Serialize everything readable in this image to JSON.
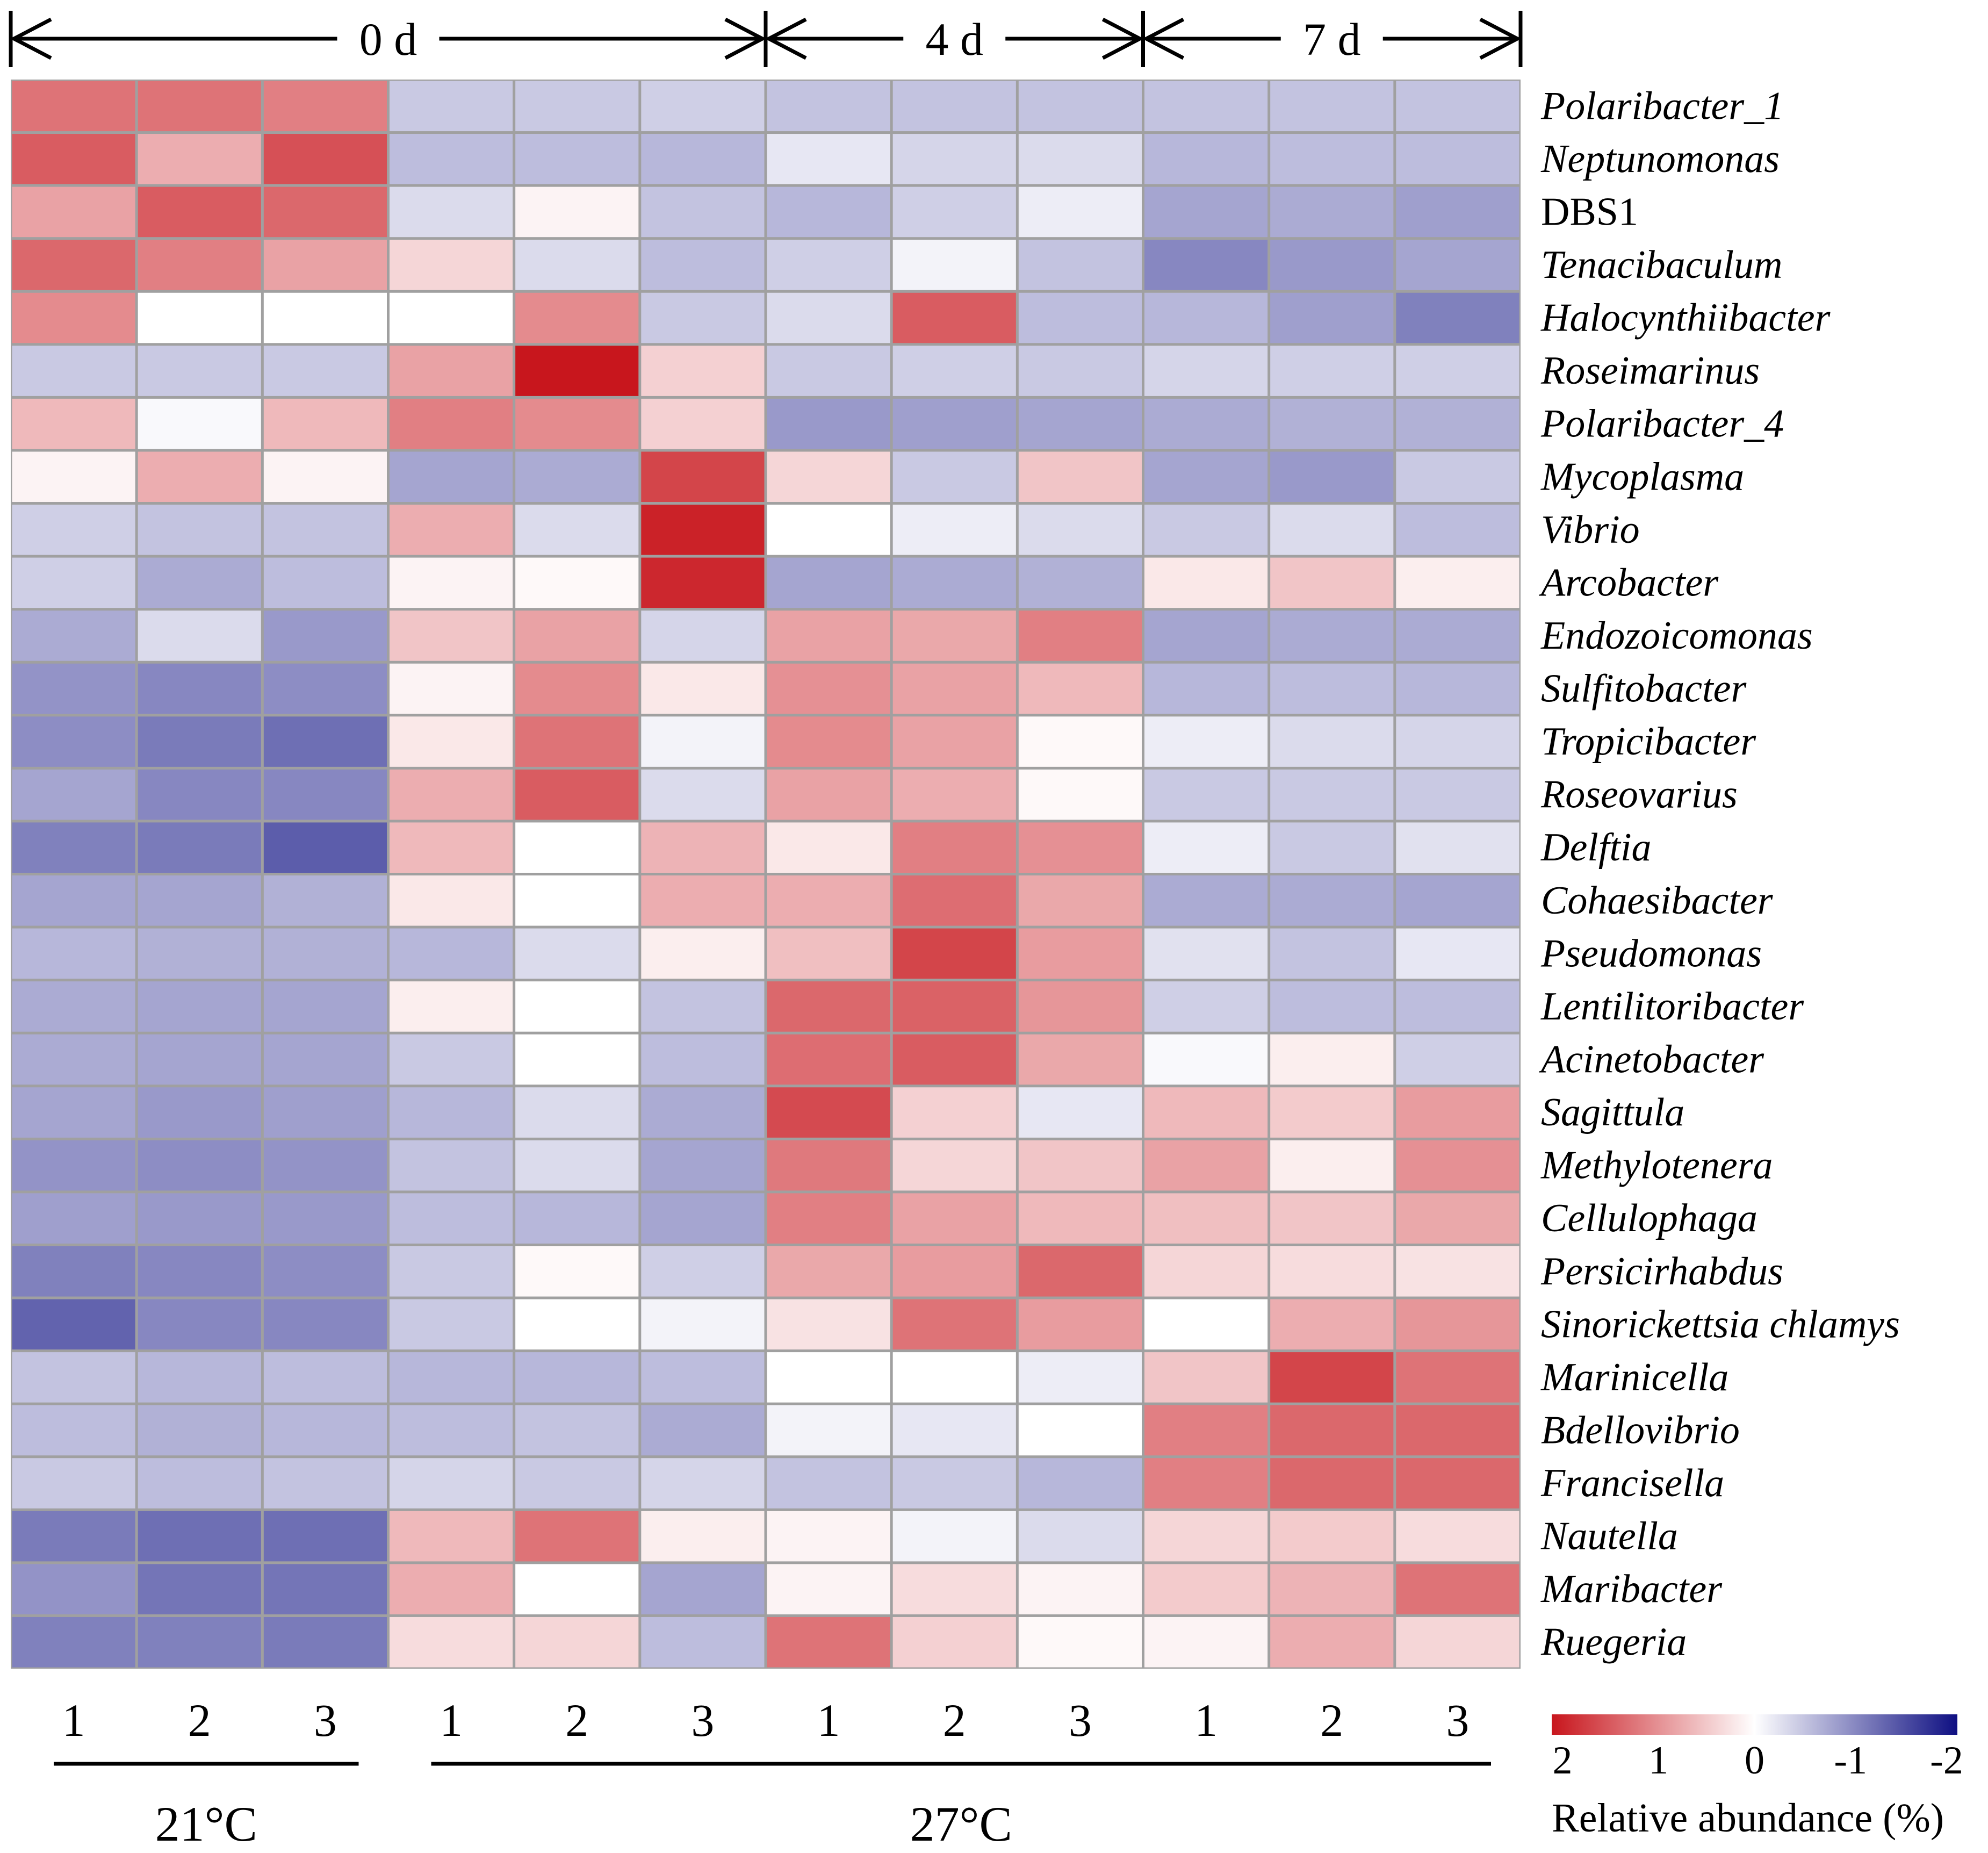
{
  "chart_data": {
    "type": "heatmap",
    "time_groups": [
      {
        "label": "0 d",
        "span": [
          0,
          5
        ]
      },
      {
        "label": "4 d",
        "span": [
          6,
          8
        ]
      },
      {
        "label": "7 d",
        "span": [
          9,
          11
        ]
      }
    ],
    "column_labels": [
      "1",
      "2",
      "3",
      "1",
      "2",
      "3",
      "1",
      "2",
      "3",
      "1",
      "2",
      "3"
    ],
    "temperature_groups": [
      {
        "label": "21°C",
        "span": [
          0,
          2
        ]
      },
      {
        "label": "27°C",
        "span": [
          3,
          11
        ]
      }
    ],
    "rows": [
      {
        "name": "Polaribacter_1",
        "italic": true
      },
      {
        "name": "Neptunomonas",
        "italic": true
      },
      {
        "name": "DBS1",
        "italic": false
      },
      {
        "name": "Tenacibaculum",
        "italic": true
      },
      {
        "name": "Halocynthiibacter",
        "italic": true
      },
      {
        "name": "Roseimarinus",
        "italic": true
      },
      {
        "name": "Polaribacter_4",
        "italic": true
      },
      {
        "name": "Mycoplasma",
        "italic": true
      },
      {
        "name": "Vibrio",
        "italic": true
      },
      {
        "name": "Arcobacter",
        "italic": true
      },
      {
        "name": "Endozoicomonas",
        "italic": true
      },
      {
        "name": "Sulfitobacter",
        "italic": true
      },
      {
        "name": "Tropicibacter",
        "italic": true
      },
      {
        "name": "Roseovarius",
        "italic": true
      },
      {
        "name": "Delftia",
        "italic": true
      },
      {
        "name": "Cohaesibacter",
        "italic": true
      },
      {
        "name": "Pseudomonas",
        "italic": true
      },
      {
        "name": "Lentilitoribacter",
        "italic": true
      },
      {
        "name": "Acinetobacter",
        "italic": true
      },
      {
        "name": "Sagittula",
        "italic": true
      },
      {
        "name": "Methylotenera",
        "italic": true
      },
      {
        "name": "Cellulophaga",
        "italic": true
      },
      {
        "name": "Persicirhabdus",
        "italic": true
      },
      {
        "name": "Sinorickettsia chlamys",
        "italic": true
      },
      {
        "name": "Marinicella",
        "italic": true
      },
      {
        "name": "Bdellovibrio",
        "italic": true
      },
      {
        "name": "Francisella",
        "italic": true
      },
      {
        "name": "Nautella",
        "italic": true
      },
      {
        "name": "Maribacter",
        "italic": true
      },
      {
        "name": "Ruegeria",
        "italic": true
      }
    ],
    "values": [
      [
        1.2,
        1.2,
        1.1,
        -0.45,
        -0.45,
        -0.4,
        -0.5,
        -0.5,
        -0.5,
        -0.5,
        -0.5,
        -0.5
      ],
      [
        1.4,
        0.7,
        1.5,
        -0.55,
        -0.55,
        -0.6,
        -0.2,
        -0.35,
        -0.3,
        -0.6,
        -0.55,
        -0.55
      ],
      [
        0.8,
        1.4,
        1.3,
        -0.3,
        0.1,
        -0.5,
        -0.6,
        -0.4,
        -0.15,
        -0.75,
        -0.7,
        -0.8
      ],
      [
        1.3,
        1.1,
        0.8,
        0.35,
        -0.3,
        -0.55,
        -0.4,
        -0.1,
        -0.5,
        -1.0,
        -0.85,
        -0.75
      ],
      [
        1.0,
        0.0,
        0.0,
        0.0,
        1.0,
        -0.45,
        -0.3,
        1.4,
        -0.55,
        -0.6,
        -0.8,
        -1.05
      ],
      [
        -0.45,
        -0.45,
        -0.45,
        0.8,
        2.0,
        0.4,
        -0.45,
        -0.4,
        -0.45,
        -0.35,
        -0.4,
        -0.4
      ],
      [
        0.6,
        -0.05,
        0.6,
        1.1,
        1.0,
        0.4,
        -0.85,
        -0.8,
        -0.75,
        -0.7,
        -0.65,
        -0.65
      ],
      [
        0.1,
        0.7,
        0.1,
        -0.75,
        -0.7,
        1.6,
        0.35,
        -0.45,
        0.5,
        -0.75,
        -0.85,
        -0.45
      ],
      [
        -0.4,
        -0.5,
        -0.5,
        0.7,
        -0.3,
        1.9,
        0.0,
        -0.15,
        -0.3,
        -0.45,
        -0.3,
        -0.55
      ],
      [
        -0.4,
        -0.7,
        -0.55,
        0.1,
        0.05,
        1.85,
        -0.75,
        -0.7,
        -0.65,
        0.2,
        0.5,
        0.15
      ],
      [
        -0.7,
        -0.3,
        -0.85,
        0.5,
        0.8,
        -0.35,
        0.8,
        0.75,
        1.1,
        -0.75,
        -0.7,
        -0.7
      ],
      [
        -0.9,
        -1.0,
        -0.95,
        0.1,
        1.0,
        0.2,
        0.95,
        0.8,
        0.6,
        -0.6,
        -0.55,
        -0.6
      ],
      [
        -0.95,
        -1.1,
        -1.2,
        0.2,
        1.2,
        -0.1,
        1.0,
        0.8,
        0.05,
        -0.15,
        -0.3,
        -0.35
      ],
      [
        -0.75,
        -1.0,
        -1.0,
        0.7,
        1.4,
        -0.3,
        0.8,
        0.7,
        0.05,
        -0.45,
        -0.45,
        -0.45
      ],
      [
        -1.05,
        -1.1,
        -1.35,
        0.6,
        0.0,
        0.65,
        0.2,
        1.1,
        0.95,
        -0.15,
        -0.45,
        -0.25
      ],
      [
        -0.75,
        -0.75,
        -0.65,
        0.2,
        0.0,
        0.7,
        0.7,
        1.25,
        0.75,
        -0.7,
        -0.7,
        -0.75
      ],
      [
        -0.6,
        -0.65,
        -0.65,
        -0.6,
        -0.3,
        0.15,
        0.55,
        1.6,
        0.85,
        -0.25,
        -0.5,
        -0.2
      ],
      [
        -0.7,
        -0.75,
        -0.75,
        0.15,
        0.0,
        -0.5,
        1.3,
        1.35,
        0.9,
        -0.4,
        -0.55,
        -0.55
      ],
      [
        -0.7,
        -0.75,
        -0.75,
        -0.45,
        0.0,
        -0.55,
        1.25,
        1.4,
        0.75,
        -0.05,
        0.15,
        -0.4
      ],
      [
        -0.75,
        -0.85,
        -0.8,
        -0.6,
        -0.3,
        -0.7,
        1.55,
        0.4,
        -0.2,
        0.6,
        0.45,
        0.85
      ],
      [
        -0.9,
        -0.95,
        -0.9,
        -0.5,
        -0.3,
        -0.75,
        1.15,
        0.35,
        0.5,
        0.8,
        0.15,
        0.95
      ],
      [
        -0.8,
        -0.85,
        -0.85,
        -0.55,
        -0.6,
        -0.75,
        1.1,
        0.8,
        0.6,
        0.55,
        0.5,
        0.75
      ],
      [
        -1.05,
        -1.0,
        -0.95,
        -0.45,
        0.05,
        -0.4,
        0.75,
        0.85,
        1.3,
        0.35,
        0.3,
        0.25
      ],
      [
        -1.3,
        -1.0,
        -1.0,
        -0.45,
        0.0,
        -0.1,
        0.25,
        1.2,
        0.85,
        0.0,
        0.7,
        0.9
      ],
      [
        -0.5,
        -0.6,
        -0.55,
        -0.6,
        -0.6,
        -0.55,
        0.0,
        0.0,
        -0.15,
        0.5,
        1.6,
        1.2
      ],
      [
        -0.55,
        -0.65,
        -0.6,
        -0.55,
        -0.5,
        -0.7,
        -0.1,
        -0.2,
        0.0,
        1.1,
        1.3,
        1.3
      ],
      [
        -0.45,
        -0.55,
        -0.5,
        -0.35,
        -0.45,
        -0.35,
        -0.5,
        -0.45,
        -0.6,
        1.1,
        1.3,
        1.3
      ],
      [
        -1.1,
        -1.2,
        -1.2,
        0.6,
        1.2,
        0.15,
        0.1,
        -0.1,
        -0.3,
        0.35,
        0.45,
        0.3
      ],
      [
        -0.9,
        -1.15,
        -1.15,
        0.7,
        0.0,
        -0.75,
        0.1,
        0.3,
        0.1,
        0.45,
        0.65,
        1.2
      ],
      [
        -1.05,
        -1.05,
        -1.1,
        0.3,
        0.35,
        -0.55,
        1.2,
        0.4,
        0.05,
        0.1,
        0.7,
        0.35
      ]
    ],
    "colorbar": {
      "ticks": [
        "2",
        "1",
        "0",
        "-1",
        "-2"
      ],
      "range": [
        2,
        -2
      ],
      "colors": {
        "high": "#c8161d",
        "mid": "#ffffff",
        "low": "#0e0f82"
      },
      "label": "Relative abundance (%)"
    },
    "grid_color": "#a0a0a0"
  }
}
